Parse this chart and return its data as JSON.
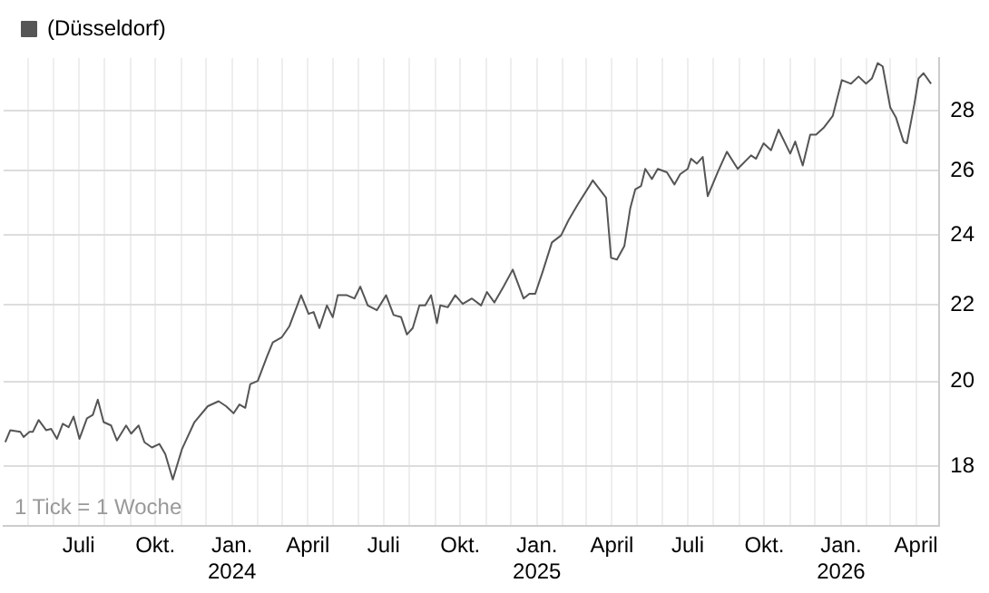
{
  "chart_data": {
    "type": "line",
    "log": "y",
    "grid": true,
    "legend": "top left",
    "marker": "none",
    "line_style": "solid",
    "annotations": [
      "1 Tick = 1 Woche"
    ],
    "xlim": [
      "2023-04-02",
      "2026-04-29"
    ],
    "ylim": [
      16.7,
      29.9
    ],
    "yticks": [
      18,
      20,
      22,
      24,
      26,
      28
    ],
    "xticks": [
      {
        "value": "2023-05-01",
        "label": null
      },
      {
        "value": "2023-06-01",
        "label": null
      },
      {
        "value": "2023-07-01",
        "label": "Juli"
      },
      {
        "value": "2023-08-01",
        "label": null
      },
      {
        "value": "2023-09-01",
        "label": null
      },
      {
        "value": "2023-10-01",
        "label": "Okt."
      },
      {
        "value": "2023-11-01",
        "label": null
      },
      {
        "value": "2023-12-01",
        "label": null
      },
      {
        "value": "2024-01-01",
        "label": "Jan.\n2024"
      },
      {
        "value": "2024-02-01",
        "label": null
      },
      {
        "value": "2024-03-01",
        "label": null
      },
      {
        "value": "2024-04-01",
        "label": "April"
      },
      {
        "value": "2024-05-01",
        "label": null
      },
      {
        "value": "2024-06-01",
        "label": null
      },
      {
        "value": "2024-07-01",
        "label": "Juli"
      },
      {
        "value": "2024-08-01",
        "label": null
      },
      {
        "value": "2024-09-01",
        "label": null
      },
      {
        "value": "2024-10-01",
        "label": "Okt."
      },
      {
        "value": "2024-11-01",
        "label": null
      },
      {
        "value": "2024-12-01",
        "label": null
      },
      {
        "value": "2025-01-01",
        "label": "Jan.\n2025"
      },
      {
        "value": "2025-02-01",
        "label": null
      },
      {
        "value": "2025-03-01",
        "label": null
      },
      {
        "value": "2025-04-01",
        "label": "April"
      },
      {
        "value": "2025-05-01",
        "label": null
      },
      {
        "value": "2025-06-01",
        "label": null
      },
      {
        "value": "2025-07-01",
        "label": "Juli"
      },
      {
        "value": "2025-08-01",
        "label": null
      },
      {
        "value": "2025-09-01",
        "label": null
      },
      {
        "value": "2025-10-01",
        "label": "Okt."
      },
      {
        "value": "2025-11-01",
        "label": null
      },
      {
        "value": "2025-12-01",
        "label": null
      },
      {
        "value": "2026-01-01",
        "label": "Jan.\n2026"
      },
      {
        "value": "2026-02-01",
        "label": null
      },
      {
        "value": "2026-03-01",
        "label": null
      },
      {
        "value": "2026-04-01",
        "label": "April"
      }
    ],
    "x": [
      "2023-04-04",
      "2023-04-10",
      "2023-04-22",
      "2023-04-26",
      "2023-05-03",
      "2023-05-07",
      "2023-05-14",
      "2023-05-23",
      "2023-05-29",
      "2023-06-05",
      "2023-06-12",
      "2023-06-19",
      "2023-06-25",
      "2023-07-02",
      "2023-07-11",
      "2023-07-18",
      "2023-07-24",
      "2023-07-31",
      "2023-08-09",
      "2023-08-16",
      "2023-08-27",
      "2023-09-02",
      "2023-09-11",
      "2023-09-18",
      "2023-09-27",
      "2023-10-06",
      "2023-10-13",
      "2023-10-22",
      "2023-11-02",
      "2023-11-17",
      "2023-12-03",
      "2023-12-16",
      "2023-12-25",
      "2024-01-03",
      "2024-01-10",
      "2024-01-17",
      "2024-01-23",
      "2024-02-01",
      "2024-02-12",
      "2024-02-19",
      "2024-03-01",
      "2024-03-10",
      "2024-03-24",
      "2024-04-02",
      "2024-04-08",
      "2024-04-15",
      "2024-04-24",
      "2024-05-01",
      "2024-05-07",
      "2024-05-18",
      "2024-05-27",
      "2024-06-03",
      "2024-06-12",
      "2024-06-23",
      "2024-07-04",
      "2024-07-13",
      "2024-07-22",
      "2024-07-29",
      "2024-08-05",
      "2024-08-13",
      "2024-08-20",
      "2024-08-27",
      "2024-09-03",
      "2024-09-07",
      "2024-09-16",
      "2024-09-25",
      "2024-10-04",
      "2024-10-15",
      "2024-10-26",
      "2024-11-02",
      "2024-11-11",
      "2024-11-22",
      "2024-12-03",
      "2024-12-16",
      "2024-12-23",
      "2024-12-30",
      "2025-01-08",
      "2025-01-19",
      "2025-01-30",
      "2025-02-08",
      "2025-02-19",
      "2025-03-05",
      "2025-03-09",
      "2025-03-25",
      "2025-03-31",
      "2025-04-07",
      "2025-04-16",
      "2025-04-23",
      "2025-04-29",
      "2025-05-06",
      "2025-05-11",
      "2025-05-19",
      "2025-05-26",
      "2025-06-06",
      "2025-06-15",
      "2025-06-22",
      "2025-07-01",
      "2025-07-05",
      "2025-07-12",
      "2025-07-19",
      "2025-07-25",
      "2025-08-06",
      "2025-08-17",
      "2025-08-30",
      "2025-09-15",
      "2025-09-21",
      "2025-09-30",
      "2025-10-09",
      "2025-10-18",
      "2025-11-01",
      "2025-11-07",
      "2025-11-16",
      "2025-11-25",
      "2025-12-02",
      "2025-12-11",
      "2025-12-22",
      "2026-01-02",
      "2026-01-13",
      "2026-01-22",
      "2026-01-31",
      "2026-02-07",
      "2026-02-14",
      "2026-02-20",
      "2026-03-01",
      "2026-03-08",
      "2026-03-17",
      "2026-03-21",
      "2026-03-30",
      "2026-04-04",
      "2026-04-10",
      "2026-04-19"
    ],
    "series": [
      {
        "name": "(Düsseldorf)",
        "color": "#555555",
        "values": [
          18.54,
          18.82,
          18.78,
          18.66,
          18.78,
          18.78,
          19.06,
          18.82,
          18.85,
          18.62,
          18.97,
          18.89,
          19.14,
          18.62,
          19.1,
          19.18,
          19.55,
          19.01,
          18.93,
          18.58,
          18.93,
          18.74,
          18.93,
          18.54,
          18.42,
          18.5,
          18.27,
          17.7,
          18.38,
          19.01,
          19.39,
          19.51,
          19.39,
          19.22,
          19.43,
          19.35,
          19.93,
          20.01,
          20.62,
          20.99,
          21.13,
          21.42,
          22.26,
          21.75,
          21.8,
          21.37,
          21.98,
          21.66,
          22.26,
          22.26,
          22.17,
          22.5,
          21.98,
          21.85,
          22.26,
          21.72,
          21.66,
          21.2,
          21.37,
          21.98,
          21.98,
          22.26,
          21.5,
          21.98,
          21.93,
          22.26,
          22.02,
          22.17,
          21.98,
          22.35,
          22.06,
          22.5,
          22.98,
          22.17,
          22.3,
          22.3,
          22.93,
          23.77,
          23.98,
          24.44,
          24.92,
          25.5,
          25.68,
          25.13,
          23.32,
          23.27,
          23.67,
          24.8,
          25.39,
          25.5,
          26.05,
          25.72,
          26.05,
          25.94,
          25.55,
          25.88,
          26.05,
          26.38,
          26.22,
          26.44,
          25.18,
          25.94,
          26.61,
          26.05,
          26.49,
          26.38,
          26.89,
          26.66,
          27.35,
          26.55,
          26.95,
          26.16,
          27.18,
          27.18,
          27.41,
          27.82,
          29.09,
          28.96,
          29.22,
          28.96,
          29.15,
          29.71,
          29.59,
          28.12,
          27.76,
          26.95,
          26.89,
          28.24,
          29.15,
          29.34,
          28.96
        ]
      }
    ]
  }
}
